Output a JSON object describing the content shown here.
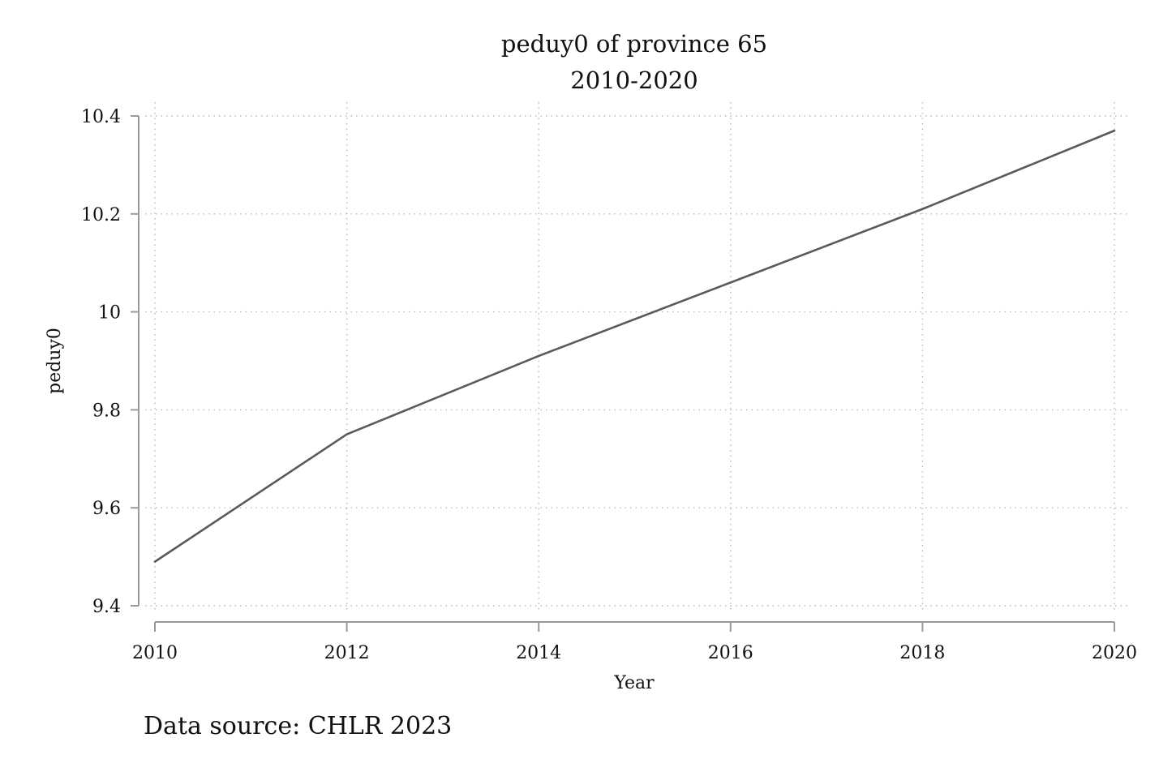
{
  "chart_data": {
    "type": "line",
    "title": "peduy0 of province 65",
    "subtitle": "2010-2020",
    "xlabel": "Year",
    "ylabel": "peduy0",
    "x": [
      2010,
      2012,
      2014,
      2016,
      2018,
      2020
    ],
    "series": [
      {
        "values": [
          9.49,
          9.75,
          9.91,
          10.06,
          10.21,
          10.37
        ]
      }
    ],
    "xlim": [
      2010,
      2020
    ],
    "ylim": [
      9.4,
      10.4
    ],
    "xticks": [
      2010,
      2012,
      2014,
      2016,
      2018,
      2020
    ],
    "yticks": [
      9.4,
      9.6,
      9.8,
      10,
      10.2,
      10.4
    ],
    "xtick_labels": [
      "2010",
      "2012",
      "2014",
      "2016",
      "2018",
      "2020"
    ],
    "ytick_labels": [
      "9.4",
      "9.6",
      "9.8",
      "10",
      "10.2",
      "10.4"
    ],
    "grid": true,
    "line_color": "#5a5a5a",
    "note": "Data source: CHLR 2023"
  }
}
